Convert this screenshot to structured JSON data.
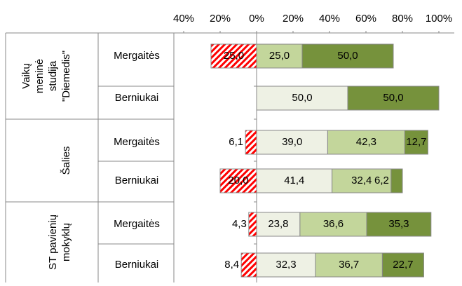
{
  "chart_data": {
    "type": "bar",
    "orientation": "horizontal",
    "stacked": true,
    "groups": [
      [
        "Vaikų",
        "meninė",
        "studija",
        "\"Diemedis\""
      ],
      [
        "Šalies"
      ],
      [
        "ST pavienių",
        "mokyklų"
      ]
    ],
    "categories": [
      "Mergaitės",
      "Berniukai",
      "Mergaitės",
      "Berniukai",
      "Mergaitės",
      "Berniukai"
    ],
    "xlim": [
      -40,
      100
    ],
    "xticks": [
      {
        "value": -40,
        "label": "40%"
      },
      {
        "value": -20,
        "label": "20%"
      },
      {
        "value": 0,
        "label": "0%"
      },
      {
        "value": 20,
        "label": "20%"
      },
      {
        "value": 40,
        "label": "40%"
      },
      {
        "value": 60,
        "label": "60%"
      },
      {
        "value": 80,
        "label": "80%"
      },
      {
        "value": 100,
        "label": "100%"
      }
    ],
    "series": [
      {
        "color": "#ff0000",
        "pattern": "hatch",
        "values": [
          -25.0,
          null,
          -6.1,
          -20.0,
          -4.3,
          -8.4
        ],
        "value_labels": [
          "25,0",
          null,
          "6,1",
          "20,0",
          "4,3",
          "8,4"
        ]
      },
      {
        "color": "#eef1e4",
        "values": [
          null,
          50.0,
          39.0,
          41.4,
          23.8,
          32.3
        ],
        "value_labels": [
          null,
          "50,0",
          "39,0",
          "41,4",
          "23,8",
          "32,3"
        ]
      },
      {
        "color": "#c3d69b",
        "values": [
          25.0,
          null,
          42.3,
          32.4,
          36.6,
          36.7
        ],
        "value_labels": [
          "25,0",
          null,
          "42,3",
          "32,4",
          "36,6",
          "36,7"
        ]
      },
      {
        "color": "#76923c",
        "values": [
          50.0,
          50.0,
          12.7,
          6.2,
          35.3,
          22.7
        ],
        "value_labels": [
          "50,0",
          "50,0",
          "12,7",
          "6,2",
          "35,3",
          "22,7"
        ]
      }
    ]
  }
}
